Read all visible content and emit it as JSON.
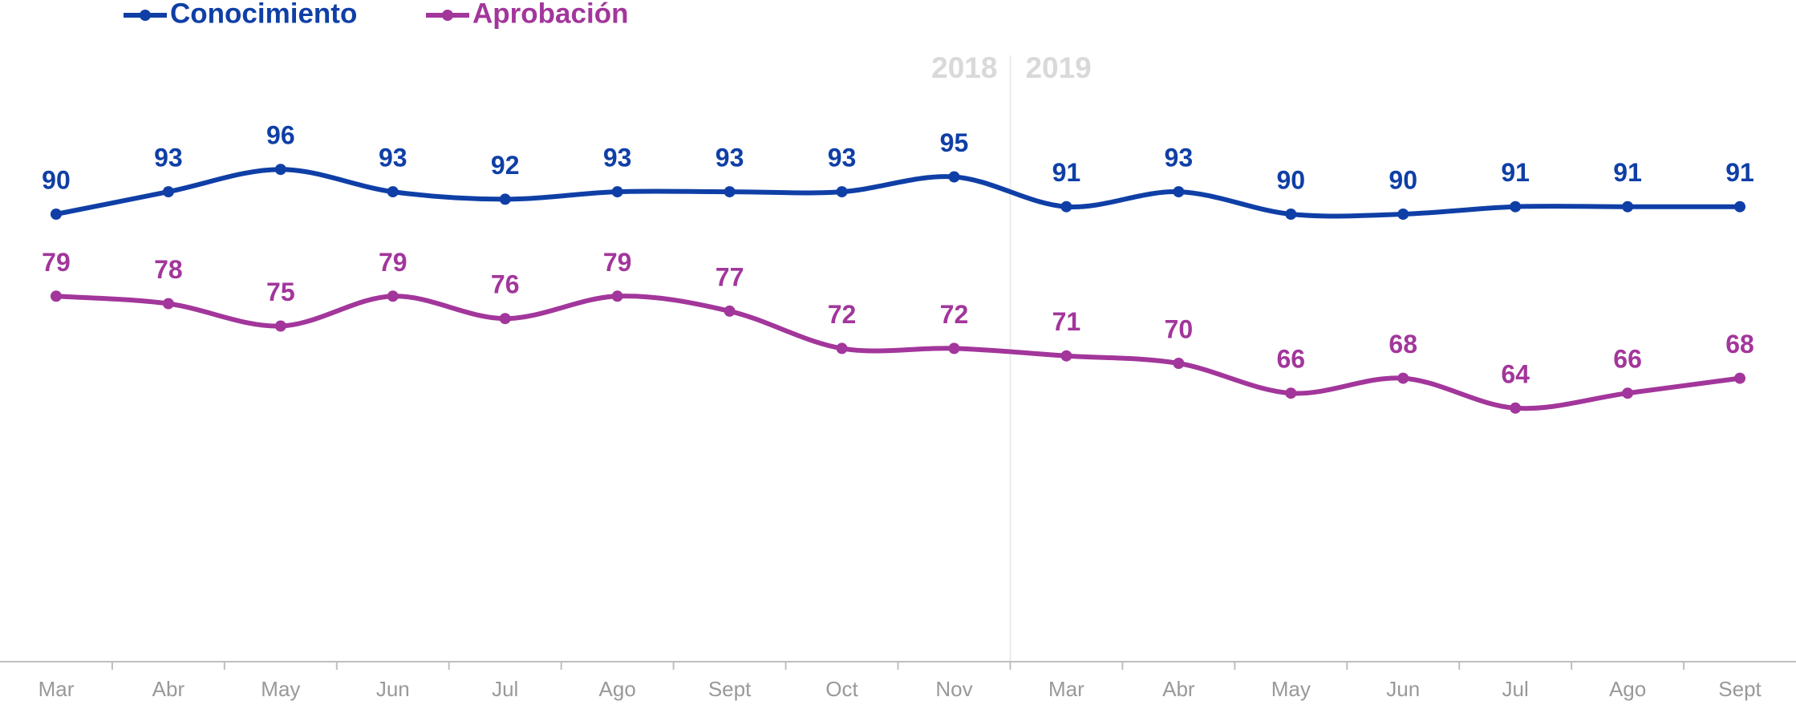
{
  "chart_data": {
    "type": "line",
    "categories": [
      "Mar",
      "Abr",
      "May",
      "Jun",
      "Jul",
      "Ago",
      "Sept",
      "Oct",
      "Nov",
      "Mar",
      "Abr",
      "May",
      "Jun",
      "Jul",
      "Ago",
      "Sept"
    ],
    "series": [
      {
        "name": "Conocimiento",
        "color": "#0f3fa6",
        "values": [
          90,
          93,
          96,
          93,
          92,
          93,
          93,
          93,
          95,
          91,
          93,
          90,
          90,
          91,
          91,
          91
        ]
      },
      {
        "name": "Aprobación",
        "color": "#a2369b",
        "values": [
          79,
          78,
          75,
          79,
          76,
          79,
          77,
          72,
          72,
          71,
          70,
          66,
          68,
          64,
          66,
          68
        ]
      }
    ],
    "annotations": [
      "2018",
      "2019"
    ],
    "ylim": [
      30,
      110
    ],
    "legend": "top-left"
  }
}
